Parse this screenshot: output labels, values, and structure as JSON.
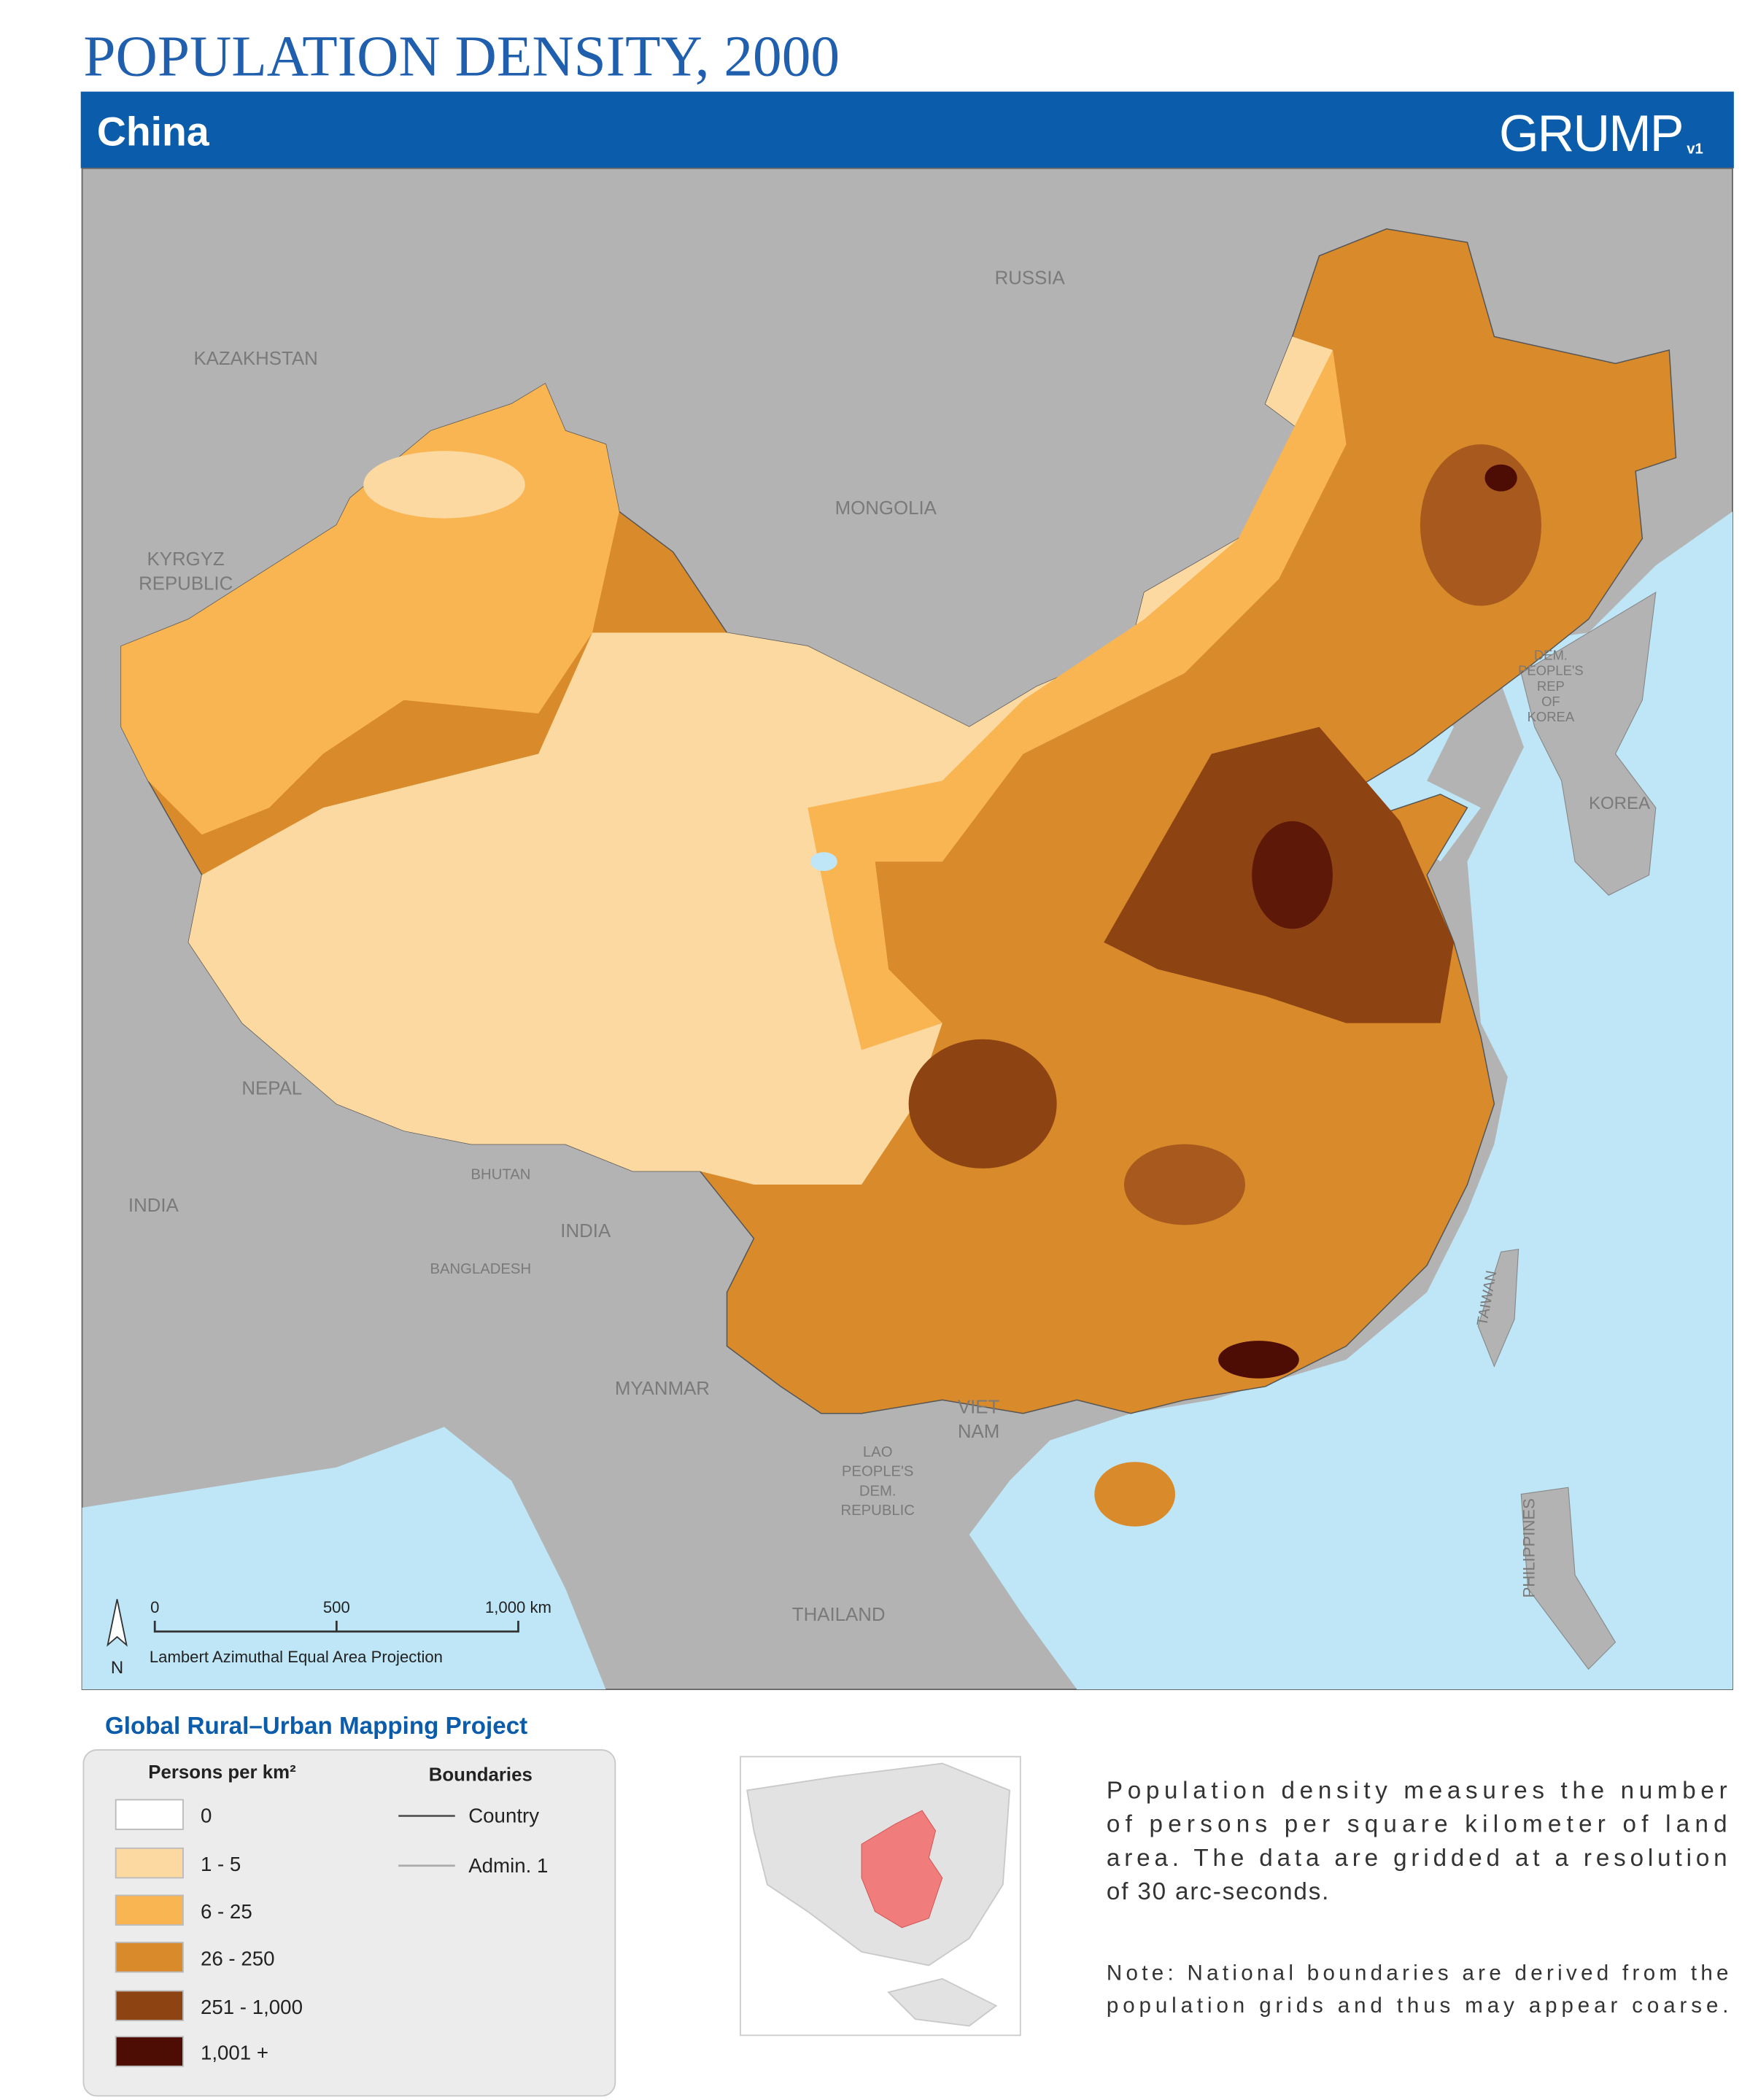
{
  "header": {
    "title": "POPULATION DENSITY, 2000",
    "region": "China",
    "logo": "GRUMP",
    "logo_version": "v1"
  },
  "map": {
    "labels": [
      {
        "lines": [
          "RUSSIA"
        ]
      },
      {
        "lines": [
          "KAZAKHSTAN"
        ]
      },
      {
        "lines": [
          "MONGOLIA"
        ]
      },
      {
        "lines": [
          "KYRGYZ",
          "REPUBLIC"
        ]
      },
      {
        "lines": [
          "DEM.",
          "PEOPLE'S",
          "REP",
          "OF",
          "KOREA"
        ]
      },
      {
        "lines": [
          "KOREA"
        ]
      },
      {
        "lines": [
          "NEPAL"
        ]
      },
      {
        "lines": [
          "BHUTAN"
        ]
      },
      {
        "lines": [
          "INDIA"
        ]
      },
      {
        "lines": [
          "INDIA"
        ]
      },
      {
        "lines": [
          "BANGLADESH"
        ]
      },
      {
        "lines": [
          "MYANMAR"
        ]
      },
      {
        "lines": [
          "VIET",
          "NAM"
        ]
      },
      {
        "lines": [
          "LAO",
          "PEOPLE'S",
          "DEM.",
          "REPUBLIC"
        ]
      },
      {
        "lines": [
          "THAILAND"
        ]
      },
      {
        "lines": [
          "TAIWAN"
        ]
      },
      {
        "lines": [
          "PHILIPPINES"
        ]
      }
    ],
    "scale_bar": {
      "ticks": [
        "0",
        "500",
        "1,000 km"
      ],
      "projection": "Lambert Azimuthal Equal Area Projection"
    },
    "north": "N"
  },
  "legend": {
    "project": "Global Rural–Urban Mapping Project",
    "density_title": "Persons per km²",
    "classes": [
      {
        "label": "0",
        "color": "#ffffff"
      },
      {
        "label": "1 - 5",
        "color": "#fdd9a2"
      },
      {
        "label": "6 - 25",
        "color": "#f9b552"
      },
      {
        "label": "26 - 250",
        "color": "#d98a2a"
      },
      {
        "label": "251 - 1,000",
        "color": "#8e4312"
      },
      {
        "label": "1,001 +",
        "color": "#4d0c04"
      }
    ],
    "boundaries_title": "Boundaries",
    "boundaries": [
      {
        "label": "Country",
        "color": "#555555"
      },
      {
        "label": "Admin. 1",
        "color": "#aaaaaa"
      }
    ]
  },
  "description": [
    "Population density measures the number",
    "of persons per square kilometer of land",
    "area. The data are gridded at a resolution",
    "of 30 arc-seconds."
  ],
  "note": [
    "Note: National boundaries are derived from the",
    "population grids and thus may appear coarse."
  ]
}
